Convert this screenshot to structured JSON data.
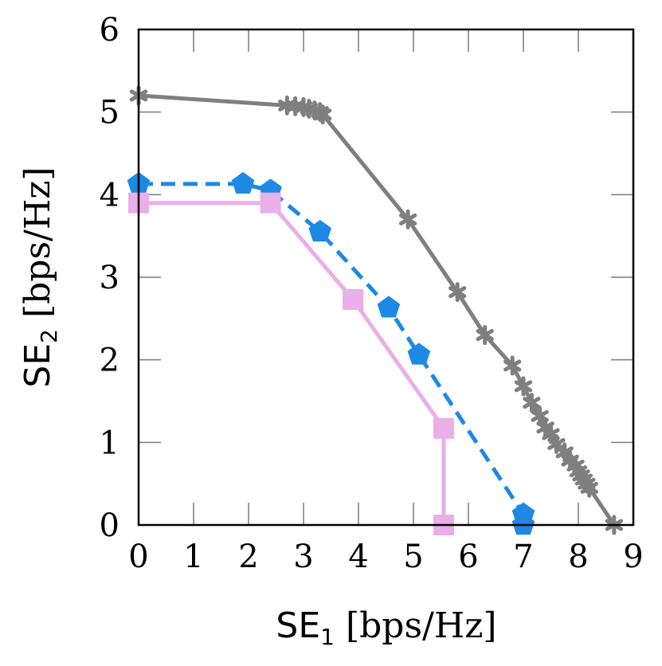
{
  "chart_data": {
    "type": "line",
    "xlabel": {
      "prefix": "SE",
      "subscript": "1",
      "unit": " [bps/Hz]"
    },
    "ylabel": {
      "prefix": "SE",
      "subscript": "2",
      "unit": " [bps/Hz]"
    },
    "xlim": [
      0,
      9
    ],
    "ylim": [
      0,
      6
    ],
    "xticks": [
      "0",
      "1",
      "2",
      "3",
      "4",
      "5",
      "6",
      "7",
      "8",
      "9"
    ],
    "yticks": [
      "0",
      "1",
      "2",
      "3",
      "4",
      "5",
      "6"
    ],
    "grid": false,
    "series": [
      {
        "color": "#7f7f7f",
        "marker": "star",
        "line": "solid",
        "x": [
          0,
          2.7,
          2.85,
          3.0,
          3.1,
          3.2,
          3.3,
          3.35,
          4.9,
          5.8,
          6.3,
          6.8,
          7.0,
          7.15,
          7.3,
          7.4,
          7.5,
          7.6,
          7.75,
          7.85,
          7.95,
          8.0,
          8.05,
          8.1,
          8.15,
          8.2,
          8.65
        ],
        "y": [
          5.2,
          5.08,
          5.07,
          5.06,
          5.04,
          5.02,
          5.0,
          4.97,
          3.7,
          2.82,
          2.3,
          1.93,
          1.68,
          1.48,
          1.32,
          1.18,
          1.1,
          0.98,
          0.88,
          0.78,
          0.72,
          0.65,
          0.6,
          0.55,
          0.5,
          0.45,
          0.0
        ]
      },
      {
        "color": "#1e88e5",
        "marker": "pentagon",
        "line": "dashed",
        "x": [
          0,
          1.9,
          2.4,
          3.3,
          4.55,
          5.1,
          7.0,
          7.0
        ],
        "y": [
          4.13,
          4.13,
          4.05,
          3.55,
          2.63,
          2.06,
          0.13,
          0.0
        ]
      },
      {
        "color": "#eaaee8",
        "marker": "square",
        "line": "solid",
        "x": [
          0,
          2.4,
          3.9,
          5.55,
          5.55
        ],
        "y": [
          3.9,
          3.9,
          2.73,
          1.17,
          0.0
        ]
      }
    ]
  }
}
